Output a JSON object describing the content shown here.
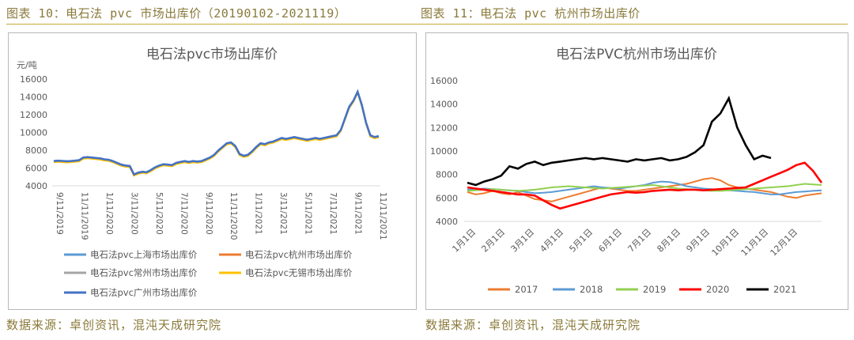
{
  "header": {
    "left": "图表 10：电石法 pvc 市场出库价（20190102-2021119）",
    "right": "图表 11：电石法 pvc 杭州市场出库价"
  },
  "footer": {
    "left": "数据来源：卓创资讯，混沌天成研究院",
    "right": "数据来源：卓创资讯，混沌天成研究院"
  },
  "chart_data": [
    {
      "type": "line",
      "title": "电石法pvc市场出库价",
      "ylabel": "元/吨",
      "ylim": [
        4000,
        16000
      ],
      "yticks": [
        4000,
        6000,
        8000,
        10000,
        12000,
        14000,
        16000
      ],
      "xticks": [
        "9/11/2019",
        "11/11/2019",
        "1/11/2020",
        "3/11/2020",
        "5/11/2020",
        "7/11/2020",
        "9/11/2020",
        "11/11/2020",
        "1/11/2021",
        "3/11/2021",
        "5/11/2021",
        "7/11/2021",
        "9/11/2021",
        "11/11/2021"
      ],
      "x_index": [
        0,
        1,
        2,
        3,
        4,
        5,
        6,
        7,
        8,
        9,
        10,
        11,
        12,
        13,
        14,
        15,
        16,
        17,
        18,
        19,
        20,
        21,
        22,
        23,
        24,
        25,
        26,
        27,
        28,
        29,
        30,
        31,
        32,
        33,
        34,
        35,
        36,
        37,
        38,
        39,
        40,
        41,
        42,
        43,
        44,
        45,
        46,
        47,
        48,
        49,
        50,
        51,
        52,
        53,
        54,
        55,
        56,
        57,
        58,
        59,
        60,
        61,
        62,
        63,
        64,
        65,
        66,
        67,
        68,
        69,
        70,
        71,
        72,
        73,
        74,
        75,
        76,
        77,
        78,
        79,
        80,
        81,
        82,
        83,
        84,
        85,
        86,
        87,
        88,
        89,
        90,
        91,
        92,
        93,
        94,
        95,
        96,
        97
      ],
      "base": [
        6700,
        6750,
        6720,
        6680,
        6700,
        6750,
        6800,
        7100,
        7150,
        7100,
        7050,
        7000,
        6900,
        6850,
        6700,
        6500,
        6300,
        6200,
        6150,
        5200,
        5400,
        5500,
        5450,
        5700,
        6000,
        6200,
        6350,
        6300,
        6250,
        6500,
        6600,
        6700,
        6600,
        6700,
        6650,
        6700,
        6900,
        7100,
        7400,
        7900,
        8300,
        8700,
        8800,
        8400,
        7500,
        7300,
        7400,
        7800,
        8300,
        8700,
        8600,
        8800,
        8900,
        9100,
        9300,
        9200,
        9300,
        9400,
        9300,
        9200,
        9100,
        9200,
        9300,
        9200,
        9300,
        9400,
        9500,
        9600,
        10200,
        11500,
        12800,
        13500,
        14500,
        13000,
        11000,
        9600,
        9400,
        9500
      ],
      "series": [
        {
          "name": "电石法pvc上海市场出库价",
          "color": "#5b9bd5",
          "offset": 0
        },
        {
          "name": "电石法pvc杭州市场出库价",
          "color": "#ed7d31",
          "offset": 60
        },
        {
          "name": "电石法pvc常州市场出库价",
          "color": "#a5a5a5",
          "offset": 30
        },
        {
          "name": "电石法pvc无锡市场出库价",
          "color": "#ffc000",
          "offset": -60
        },
        {
          "name": "电石法pvc广州市场出库价",
          "color": "#4472c4",
          "offset": 80
        }
      ]
    },
    {
      "type": "line",
      "title": "电石法PVC杭州市场出库价",
      "ylim": [
        4000,
        16000
      ],
      "yticks": [
        4000,
        6000,
        8000,
        10000,
        12000,
        14000,
        16000
      ],
      "xticks": [
        "1月1日",
        "2月1日",
        "3月1日",
        "4月1日",
        "5月1日",
        "6月1日",
        "7月1日",
        "8月1日",
        "9月1日",
        "10月1日",
        "11月1日",
        "12月1日"
      ],
      "series": [
        {
          "name": "2017",
          "color": "#ed7d31",
          "values": [
            6500,
            6300,
            6400,
            6600,
            6400,
            6300,
            6500,
            6200,
            5900,
            5800,
            5700,
            5900,
            6100,
            6300,
            6500,
            6700,
            6900,
            6800,
            6700,
            6600,
            6600,
            6700,
            6800,
            6900,
            7000,
            7100,
            7200,
            7400,
            7600,
            7700,
            7500,
            7100,
            6900,
            6800,
            6700,
            6600,
            6500,
            6300,
            6100,
            6000,
            6200,
            6300,
            6400
          ]
        },
        {
          "name": "2018",
          "color": "#5b9bd5",
          "values": [
            6700,
            6750,
            6800,
            6750,
            6700,
            6650,
            6600,
            6500,
            6400,
            6450,
            6500,
            6600,
            6700,
            6800,
            6900,
            7000,
            6900,
            6850,
            6800,
            6900,
            7000,
            7100,
            7300,
            7400,
            7350,
            7200,
            7000,
            6900,
            6800,
            6750,
            6700,
            6650,
            6600,
            6550,
            6500,
            6400,
            6300,
            6300,
            6400,
            6500,
            6550,
            6600,
            6650
          ]
        },
        {
          "name": "2019",
          "color": "#92d050",
          "values": [
            6600,
            6650,
            6700,
            6750,
            6700,
            6650,
            6600,
            6650,
            6700,
            6800,
            6900,
            6950,
            7000,
            6950,
            6900,
            6850,
            6800,
            6850,
            6900,
            6950,
            7000,
            7050,
            7100,
            7000,
            6900,
            6800,
            6750,
            6700,
            6650,
            6600,
            6600,
            6650,
            6700,
            6750,
            6800,
            6850,
            6900,
            6950,
            7000,
            7100,
            7200,
            7150,
            7100
          ]
        },
        {
          "name": "2020",
          "color": "#ff0000",
          "values": [
            6900,
            6800,
            6700,
            6600,
            6500,
            6400,
            6300,
            6300,
            6200,
            5800,
            5400,
            5100,
            5300,
            5500,
            5700,
            5900,
            6100,
            6300,
            6400,
            6500,
            6450,
            6500,
            6600,
            6650,
            6700,
            6650,
            6700,
            6700,
            6650,
            6700,
            6750,
            6800,
            6850,
            6900,
            7200,
            7500,
            7800,
            8100,
            8400,
            8800,
            9000,
            8300,
            7300
          ]
        },
        {
          "name": "2021",
          "color": "#000000",
          "values": [
            7300,
            7100,
            7400,
            7600,
            7900,
            8700,
            8500,
            8900,
            9100,
            8800,
            9000,
            9100,
            9200,
            9300,
            9400,
            9300,
            9400,
            9300,
            9200,
            9100,
            9300,
            9200,
            9300,
            9400,
            9200,
            9300,
            9500,
            9900,
            10500,
            12500,
            13200,
            14500,
            12000,
            10500,
            9300,
            9600,
            9400
          ]
        }
      ]
    }
  ]
}
